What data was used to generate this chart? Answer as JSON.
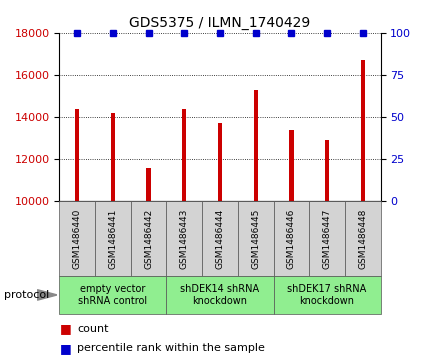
{
  "title": "GDS5375 / ILMN_1740429",
  "categories": [
    "GSM1486440",
    "GSM1486441",
    "GSM1486442",
    "GSM1486443",
    "GSM1486444",
    "GSM1486445",
    "GSM1486446",
    "GSM1486447",
    "GSM1486448"
  ],
  "counts": [
    14400,
    14200,
    11600,
    14400,
    13700,
    15300,
    13400,
    12900,
    16700
  ],
  "percentiles": [
    100,
    100,
    100,
    100,
    100,
    100,
    100,
    100,
    100
  ],
  "bar_color": "#cc0000",
  "dot_color": "#0000cc",
  "ylim_left": [
    10000,
    18000
  ],
  "ylim_right": [
    0,
    100
  ],
  "yticks_left": [
    10000,
    12000,
    14000,
    16000,
    18000
  ],
  "yticks_right": [
    0,
    25,
    50,
    75,
    100
  ],
  "groups": [
    {
      "label": "empty vector\nshRNA control",
      "start": 0,
      "end": 3
    },
    {
      "label": "shDEK14 shRNA\nknockdown",
      "start": 3,
      "end": 6
    },
    {
      "label": "shDEK17 shRNA\nknockdown",
      "start": 6,
      "end": 9
    }
  ],
  "group_color": "#90ee90",
  "sample_box_color": "#d3d3d3",
  "bar_width": 0.12,
  "legend_count_color": "#cc0000",
  "legend_percentile_color": "#0000cc",
  "tick_label_color_left": "#cc0000",
  "tick_label_color_right": "#0000cc",
  "title_fontsize": 10,
  "axis_fontsize": 8,
  "xlabel_fontsize": 7,
  "group_label_fontsize": 7
}
